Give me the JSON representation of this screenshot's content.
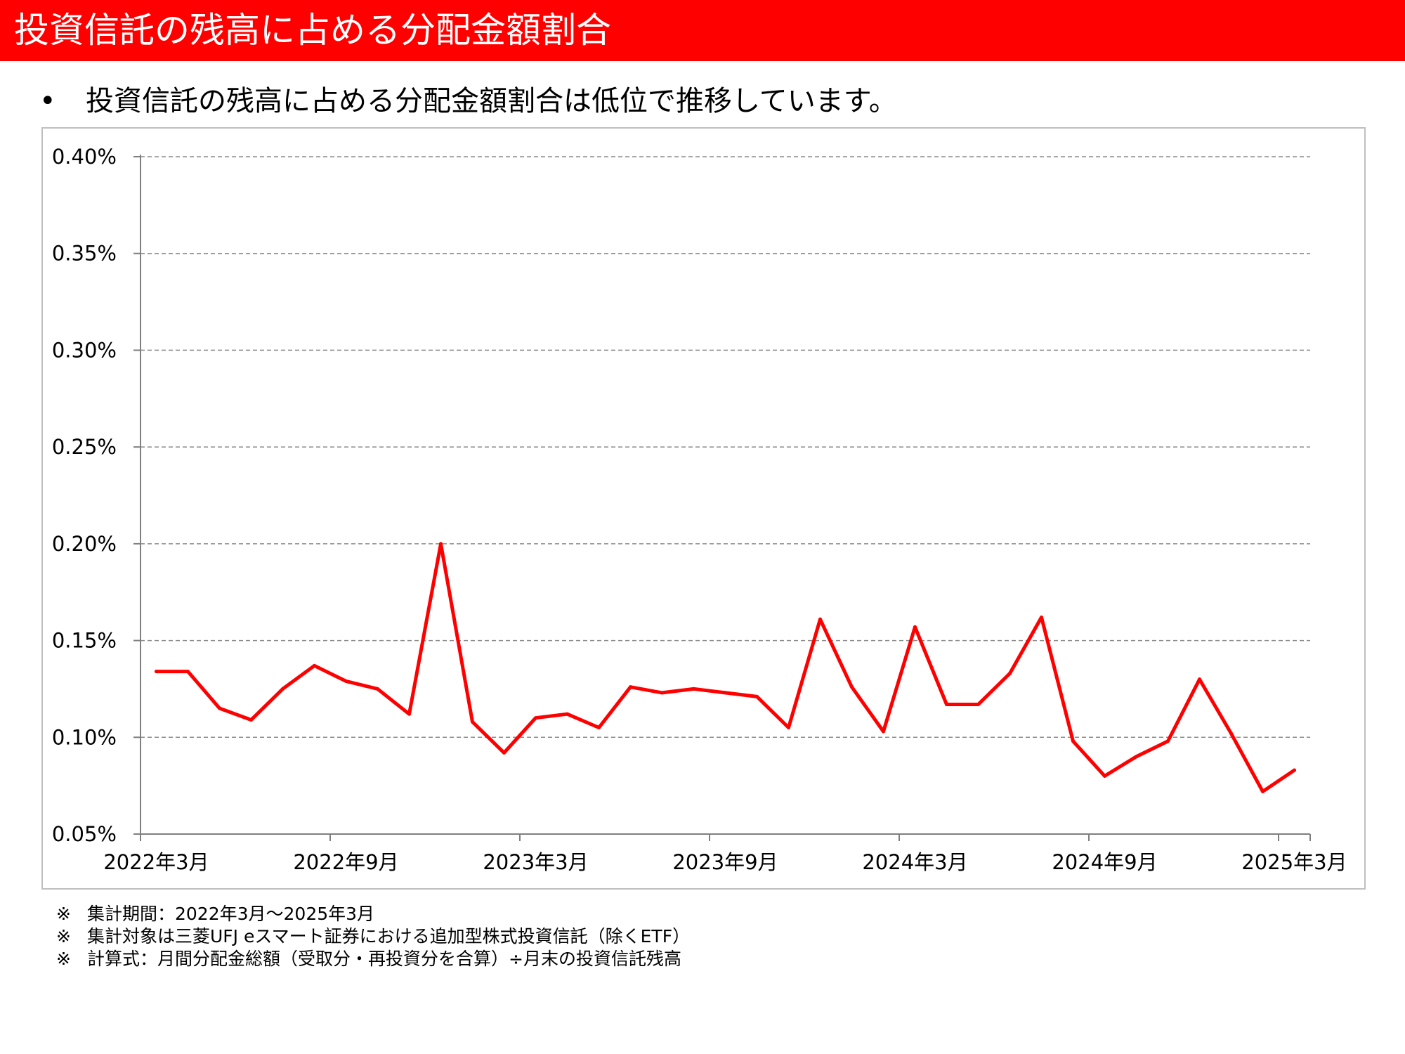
{
  "header": {
    "title": "投資信託の残高に占める分配金額割合"
  },
  "bullet": {
    "marker": "•",
    "text": "投資信託の残高に占める分配金額割合は低位で推移しています。"
  },
  "chart_data": {
    "type": "line",
    "title": "",
    "xlabel": "",
    "ylabel": "",
    "ylim": [
      0.05,
      0.4
    ],
    "y_ticks": [
      "0.05%",
      "0.10%",
      "0.15%",
      "0.20%",
      "0.25%",
      "0.30%",
      "0.35%",
      "0.40%"
    ],
    "x_tick_labels": [
      "2022年3月",
      "2022年9月",
      "2023年3月",
      "2023年9月",
      "2024年3月",
      "2024年9月",
      "2025年3月"
    ],
    "grid": "horizontal dashed",
    "line_color": "#ff0000",
    "series": [
      {
        "values": [
          0.134,
          0.134,
          0.115,
          0.109,
          0.125,
          0.137,
          0.129,
          0.125,
          0.112,
          0.2,
          0.108,
          0.092,
          0.11,
          0.112,
          0.105,
          0.126,
          0.123,
          0.125,
          0.123,
          0.121,
          0.105,
          0.161,
          0.126,
          0.103,
          0.157,
          0.117,
          0.117,
          0.133,
          0.162,
          0.098,
          0.08,
          0.09,
          0.098,
          0.13,
          0.102,
          0.072,
          0.083
        ]
      }
    ]
  },
  "notes": [
    {
      "mark": "※",
      "text": "集計期間：2022年3月～2025年3月"
    },
    {
      "mark": "※",
      "text": "集計対象は三菱UFJ eスマート証券における追加型株式投資信託（除くETF）"
    },
    {
      "mark": "※",
      "text": "計算式：月間分配金総額（受取分・再投資分を合算）÷月末の投資信託残高"
    }
  ]
}
